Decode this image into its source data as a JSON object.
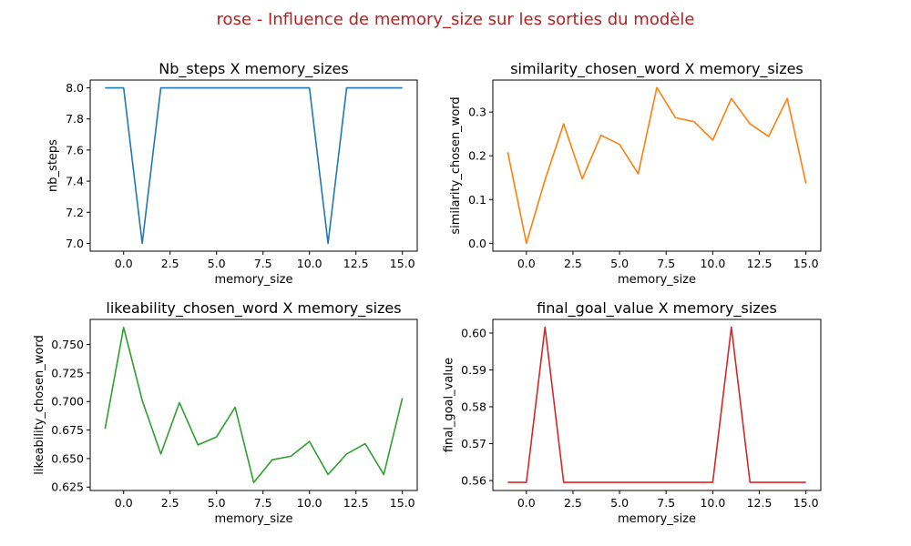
{
  "figure": {
    "suptitle": "rose - Influence de memory_size sur les sorties du modèle",
    "suptitle_color": "#b22222"
  },
  "chart_data": [
    {
      "type": "line",
      "title": "Nb_steps X memory_sizes",
      "xlabel": "memory_size",
      "ylabel": "nb_steps",
      "color": "#1f77b4",
      "xlim": [
        -1.8,
        15.8
      ],
      "ylim": [
        6.95,
        8.05
      ],
      "xticks": [
        0.0,
        2.5,
        5.0,
        7.5,
        10.0,
        12.5,
        15.0
      ],
      "xtick_labels": [
        "0.0",
        "2.5",
        "5.0",
        "7.5",
        "10.0",
        "12.5",
        "15.0"
      ],
      "yticks": [
        7.0,
        7.2,
        7.4,
        7.6,
        7.8,
        8.0
      ],
      "ytick_labels": [
        "7.0",
        "7.2",
        "7.4",
        "7.6",
        "7.8",
        "8.0"
      ],
      "x": [
        -1,
        0,
        1,
        2,
        3,
        4,
        5,
        6,
        7,
        8,
        9,
        10,
        11,
        12,
        13,
        14,
        15
      ],
      "y": [
        8.0,
        8.0,
        7.0,
        8.0,
        8.0,
        8.0,
        8.0,
        8.0,
        8.0,
        8.0,
        8.0,
        8.0,
        7.0,
        8.0,
        8.0,
        8.0,
        8.0
      ]
    },
    {
      "type": "line",
      "title": "similarity_chosen_word X memory_sizes",
      "xlabel": "memory_size",
      "ylabel": "similarity_chosen_word",
      "color": "#ff7f0e",
      "xlim": [
        -1.8,
        15.8
      ],
      "ylim": [
        -0.018,
        0.373
      ],
      "xticks": [
        0.0,
        2.5,
        5.0,
        7.5,
        10.0,
        12.5,
        15.0
      ],
      "xtick_labels": [
        "0.0",
        "2.5",
        "5.0",
        "7.5",
        "10.0",
        "12.5",
        "15.0"
      ],
      "yticks": [
        0.0,
        0.1,
        0.2,
        0.3
      ],
      "ytick_labels": [
        "0.0",
        "0.1",
        "0.2",
        "0.3"
      ],
      "x": [
        -1,
        0,
        1,
        2,
        3,
        4,
        5,
        6,
        7,
        8,
        9,
        10,
        11,
        12,
        13,
        14,
        15
      ],
      "y": [
        0.208,
        0.0,
        0.145,
        0.273,
        0.147,
        0.247,
        0.226,
        0.159,
        0.356,
        0.287,
        0.278,
        0.236,
        0.331,
        0.273,
        0.244,
        0.331,
        0.137
      ]
    },
    {
      "type": "line",
      "title": "likeability_chosen_word X memory_sizes",
      "xlabel": "memory_size",
      "ylabel": "likeability_chosen_word",
      "color": "#2ca02c",
      "xlim": [
        -1.8,
        15.8
      ],
      "ylim": [
        0.622,
        0.772
      ],
      "xticks": [
        0.0,
        2.5,
        5.0,
        7.5,
        10.0,
        12.5,
        15.0
      ],
      "xtick_labels": [
        "0.0",
        "2.5",
        "5.0",
        "7.5",
        "10.0",
        "12.5",
        "15.0"
      ],
      "yticks": [
        0.625,
        0.65,
        0.675,
        0.7,
        0.725,
        0.75
      ],
      "ytick_labels": [
        "0.625",
        "0.650",
        "0.675",
        "0.700",
        "0.725",
        "0.750"
      ],
      "x": [
        -1,
        0,
        1,
        2,
        3,
        4,
        5,
        6,
        7,
        8,
        9,
        10,
        11,
        12,
        13,
        14,
        15
      ],
      "y": [
        0.676,
        0.765,
        0.701,
        0.654,
        0.699,
        0.662,
        0.669,
        0.695,
        0.629,
        0.649,
        0.652,
        0.665,
        0.636,
        0.654,
        0.663,
        0.636,
        0.703
      ]
    },
    {
      "type": "line",
      "title": "final_goal_value X memory_sizes",
      "xlabel": "memory_size",
      "ylabel": "final_goal_value",
      "color": "#d62728",
      "xlim": [
        -1.8,
        15.8
      ],
      "ylim": [
        0.5573,
        0.6037
      ],
      "xticks": [
        0.0,
        2.5,
        5.0,
        7.5,
        10.0,
        12.5,
        15.0
      ],
      "xtick_labels": [
        "0.0",
        "2.5",
        "5.0",
        "7.5",
        "10.0",
        "12.5",
        "15.0"
      ],
      "yticks": [
        0.56,
        0.57,
        0.58,
        0.59,
        0.6
      ],
      "ytick_labels": [
        "0.56",
        "0.57",
        "0.58",
        "0.59",
        "0.60"
      ],
      "x": [
        -1,
        0,
        1,
        2,
        3,
        4,
        5,
        6,
        7,
        8,
        9,
        10,
        11,
        12,
        13,
        14,
        15
      ],
      "y": [
        0.5595,
        0.5595,
        0.6016,
        0.5595,
        0.5595,
        0.5595,
        0.5595,
        0.5595,
        0.5595,
        0.5595,
        0.5595,
        0.5595,
        0.6016,
        0.5595,
        0.5595,
        0.5595,
        0.5595
      ]
    }
  ]
}
